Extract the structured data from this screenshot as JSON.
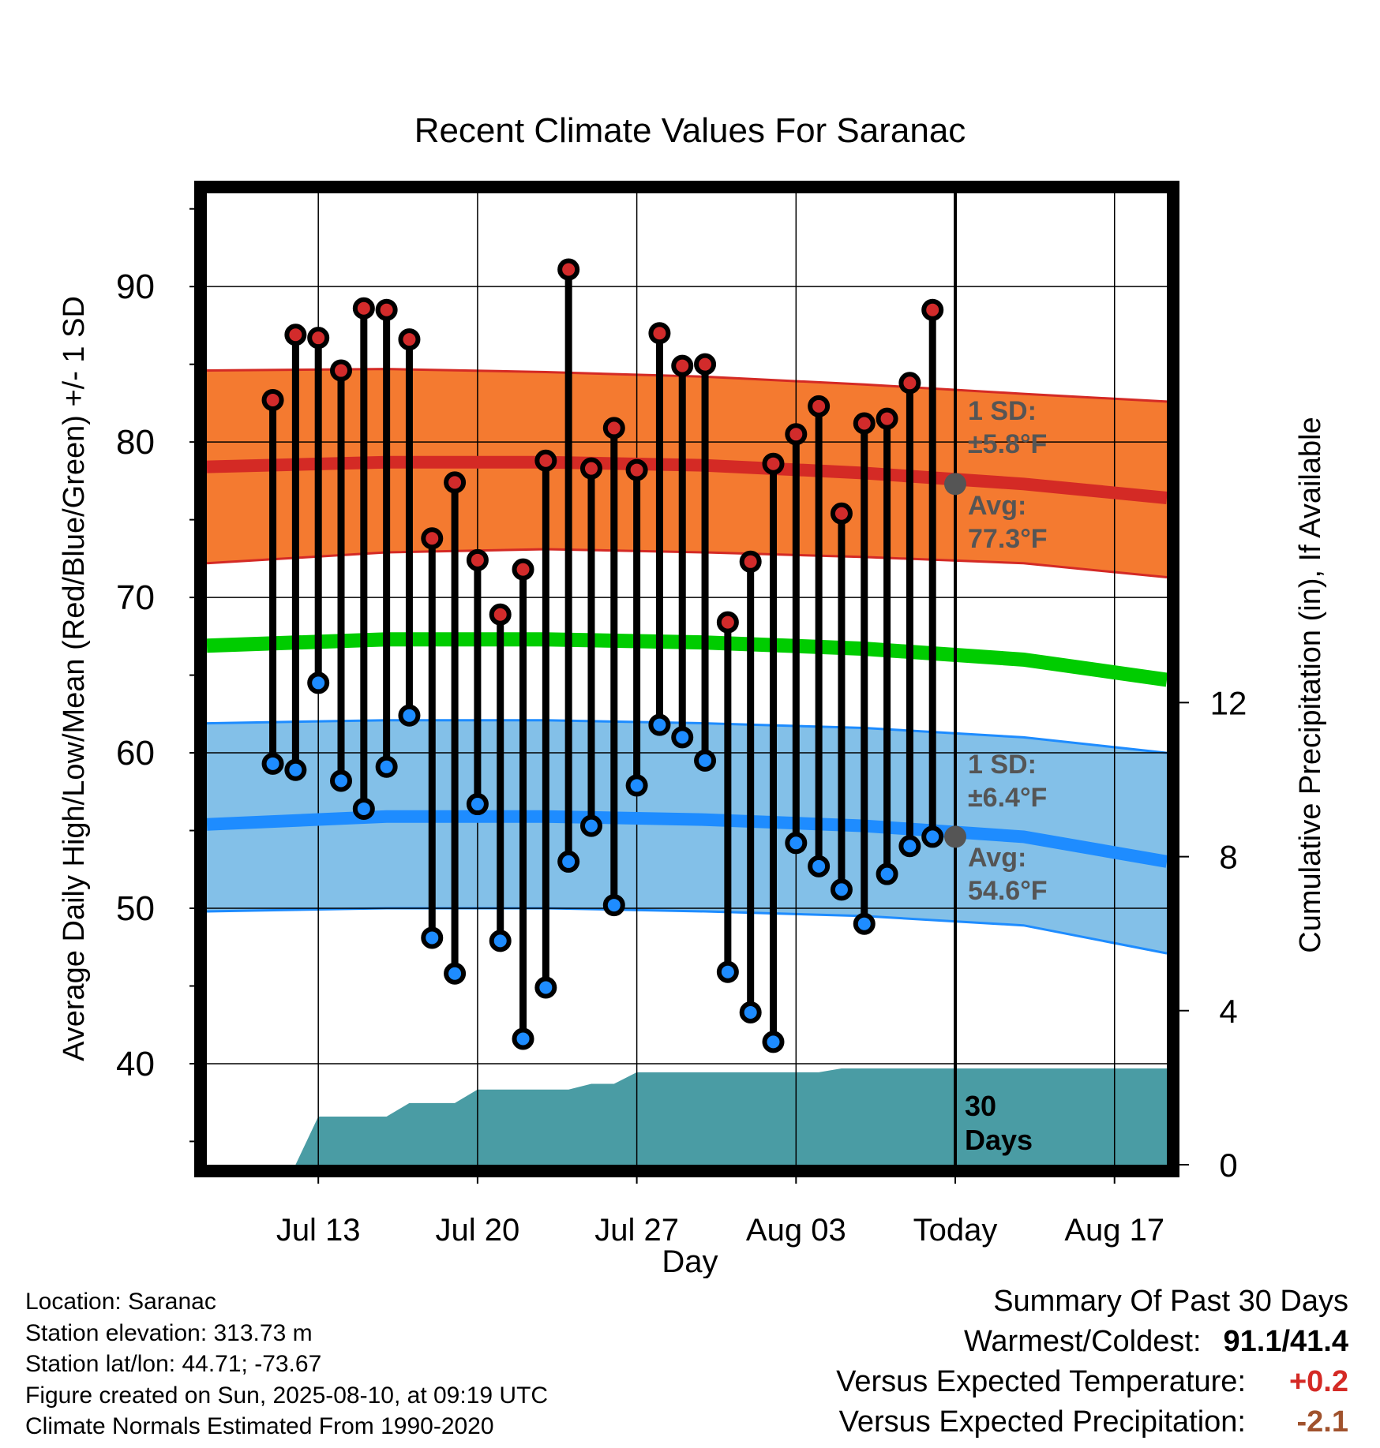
{
  "chart_data": {
    "type": "line",
    "title": "Recent Climate Values For Saranac",
    "xlabel": "Day",
    "ylabel": "Average Daily High/Low/Mean (Red/Blue/Green) +/- 1 SD",
    "y2label": "Cumulative Precipitation (in), If Available",
    "ylim": [
      33.5,
      96
    ],
    "y2lim": [
      0,
      20
    ],
    "yticks": [
      40,
      50,
      60,
      70,
      80,
      90
    ],
    "y2ticks": [
      0,
      4,
      8,
      12
    ],
    "xlim": [
      -1.9,
      40.3
    ],
    "x_tick_positions": [
      3,
      10,
      17,
      24,
      31,
      38
    ],
    "x_tick_labels": [
      "Jul 13",
      "Jul 20",
      "Jul 27",
      "Aug 03",
      "Today",
      "Aug 17"
    ],
    "today_index": 31,
    "grid": true,
    "daily_highs": [
      82.7,
      86.9,
      86.7,
      84.6,
      88.6,
      88.5,
      86.6,
      73.8,
      77.4,
      72.4,
      68.9,
      71.8,
      78.8,
      91.1,
      78.3,
      80.9,
      78.2,
      87.0,
      84.9,
      85.0,
      68.4,
      72.3,
      78.6,
      80.5,
      82.3,
      75.4,
      81.2,
      81.5,
      83.8,
      88.5
    ],
    "daily_lows": [
      59.3,
      58.9,
      64.5,
      58.2,
      56.4,
      59.1,
      62.4,
      48.1,
      45.8,
      56.7,
      47.9,
      41.6,
      44.9,
      53.0,
      55.3,
      50.2,
      57.9,
      61.8,
      61.0,
      59.5,
      45.9,
      43.3,
      41.4,
      54.2,
      52.7,
      51.2,
      49.0,
      52.2,
      54.0,
      54.6
    ],
    "normal_high_avg": [
      78.4,
      78.7,
      78.7,
      78.5,
      78.0,
      77.3,
      76.4
    ],
    "normal_high_upper": [
      84.6,
      84.7,
      84.5,
      84.2,
      83.7,
      83.1,
      82.6
    ],
    "normal_high_lower": [
      72.2,
      72.9,
      73.1,
      72.9,
      72.6,
      72.2,
      71.3
    ],
    "normal_mean": [
      66.9,
      67.3,
      67.3,
      67.1,
      66.7,
      66.0,
      64.7
    ],
    "normal_low_avg": [
      55.4,
      55.9,
      55.9,
      55.7,
      55.3,
      54.6,
      53.0
    ],
    "normal_low_upper": [
      61.9,
      62.1,
      62.1,
      61.9,
      61.6,
      61.0,
      60.0
    ],
    "normal_low_lower": [
      49.8,
      50.0,
      50.0,
      49.8,
      49.5,
      48.9,
      47.1
    ],
    "normal_x": [
      -1.9,
      6,
      13,
      20,
      27,
      34,
      40.3
    ],
    "precip_x": [
      -1.9,
      0,
      1,
      2,
      3,
      6,
      7,
      9,
      10,
      14,
      15,
      16,
      17,
      25,
      26,
      40.3
    ],
    "precip_cum": [
      0,
      0,
      0,
      0,
      1.25,
      1.25,
      1.6,
      1.6,
      1.95,
      1.95,
      2.1,
      2.1,
      2.4,
      2.4,
      2.5,
      2.5
    ],
    "high_sd_label": "1 SD:",
    "high_sd_value": "±5.8°F",
    "high_avg_label": "Avg:",
    "high_avg_value": "77.3°F",
    "low_sd_label": "1 SD:",
    "low_sd_value": "±6.4°F",
    "low_avg_label": "Avg:",
    "low_avg_value": "54.6°F",
    "period_label_1": "30",
    "period_label_2": "Days",
    "colors": {
      "high_band": "#f47a30",
      "high_line": "#d42a25",
      "low_band": "#83c0e8",
      "low_line": "#1e8cff",
      "mean_line": "#00cc00",
      "precip": "#4a9ca4",
      "high_dot": "#d22b2b",
      "low_dot": "#1e8cff",
      "annotation": "#555555"
    }
  },
  "footer": {
    "location": "Location: Saranac",
    "elevation": "Station elevation: 313.73 m",
    "latlon": "Station lat/lon: 44.71; -73.67",
    "created": "Figure created on Sun, 2025-08-10, at 09:19 UTC",
    "normals": "Climate Normals Estimated From 1990-2020"
  },
  "summary": {
    "title": "Summary Of Past 30 Days",
    "warm_cold_label": "Warmest/Coldest:",
    "warm_cold_value": "91.1/41.4",
    "temp_label": "Versus Expected Temperature:",
    "temp_value": "+0.2",
    "temp_color": "#d42a25",
    "precip_label": "Versus Expected Precipitation:",
    "precip_value": "-2.1",
    "precip_color": "#a0522d"
  }
}
